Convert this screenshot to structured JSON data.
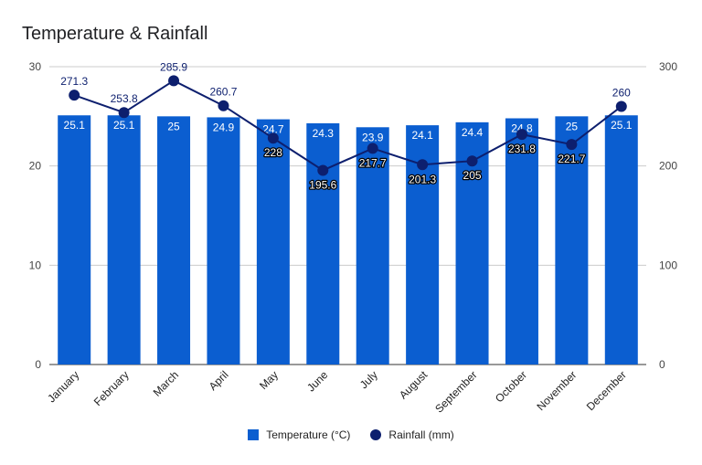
{
  "chart_data": {
    "type": "bar",
    "title": "Temperature & Rainfall",
    "categories": [
      "January",
      "February",
      "March",
      "April",
      "May",
      "June",
      "July",
      "August",
      "September",
      "October",
      "November",
      "December"
    ],
    "series": [
      {
        "name": "Temperature (°C)",
        "type": "bar",
        "axis": "left",
        "color": "#0b5ed0",
        "values": [
          25.1,
          25.1,
          25,
          24.9,
          24.7,
          24.3,
          23.9,
          24.1,
          24.4,
          24.8,
          25,
          25.1
        ],
        "labels": [
          "25.1",
          "25.1",
          "25",
          "24.9",
          "24.7",
          "24.3",
          "23.9",
          "24.1",
          "24.4",
          "24.8",
          "25",
          "25.1"
        ]
      },
      {
        "name": "Rainfall (mm)",
        "type": "line",
        "axis": "right",
        "color": "#0d1f6e",
        "values": [
          271.3,
          253.8,
          285.9,
          260.7,
          228,
          195.6,
          217.7,
          201.3,
          205,
          231.8,
          221.7,
          260
        ],
        "labels": [
          "271.3",
          "253.8",
          "285.9",
          "260.7",
          "228",
          "195.6",
          "217.7",
          "201.3",
          "205",
          "231.8",
          "221.7",
          "260"
        ]
      }
    ],
    "left_axis": {
      "ylim": [
        0,
        30
      ],
      "ticks": [
        "0",
        "10",
        "20",
        "30"
      ]
    },
    "right_axis": {
      "ylim": [
        0,
        300
      ],
      "ticks": [
        "0",
        "100",
        "200",
        "300"
      ]
    },
    "grid": true,
    "legend": "bottom"
  }
}
